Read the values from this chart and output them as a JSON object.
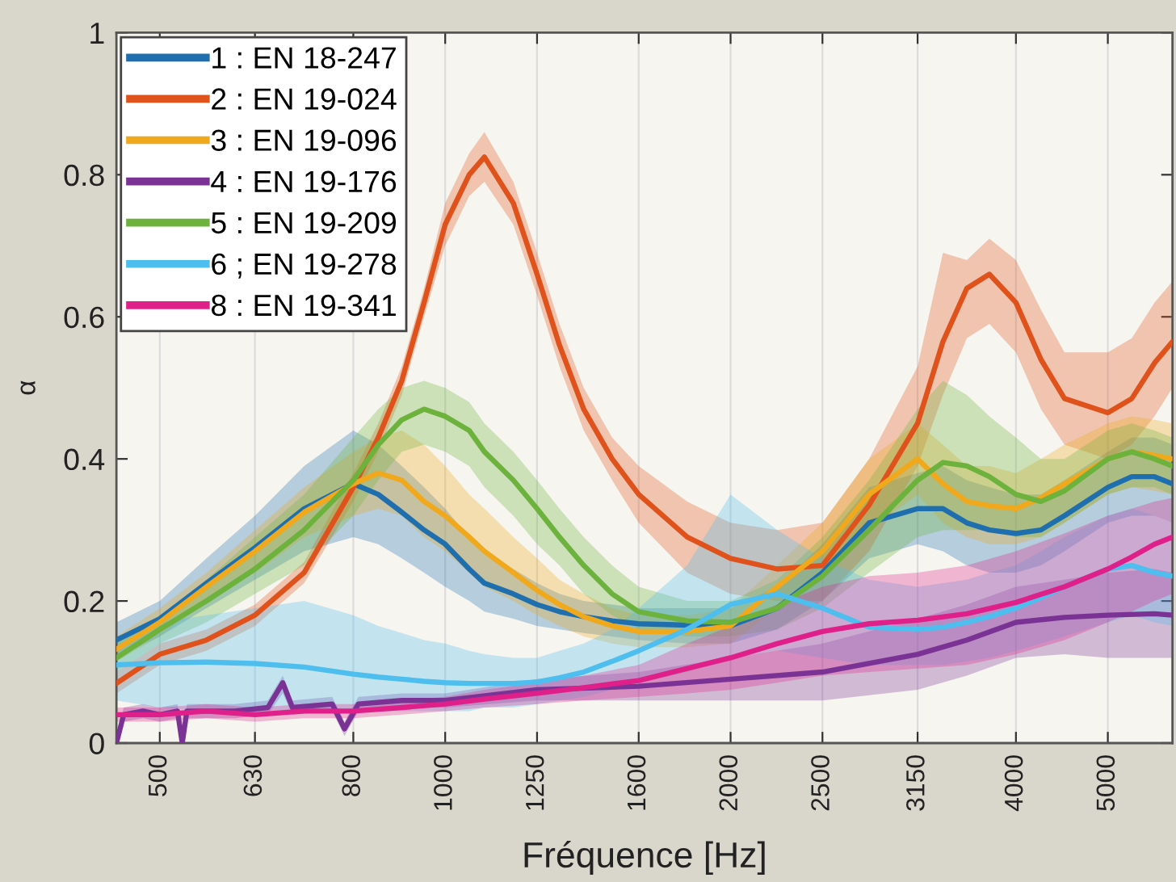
{
  "chart_data": {
    "type": "line",
    "xlabel": "Fréquence [Hz]",
    "ylabel": "α",
    "log": "x",
    "grid": "x",
    "legend": "top left",
    "xlim": [
      450,
      5850
    ],
    "xticks": [
      500,
      630,
      800,
      1000,
      1250,
      1600,
      2000,
      2500,
      3150,
      4000,
      5000
    ],
    "ylim": [
      0,
      1
    ],
    "yticks": [
      0,
      0.2,
      0.4,
      0.6,
      0.8,
      1
    ],
    "x": [
      450,
      500,
      560,
      630,
      710,
      800,
      850,
      900,
      950,
      1000,
      1060,
      1100,
      1180,
      1250,
      1320,
      1400,
      1500,
      1600,
      1800,
      2000,
      2240,
      2500,
      2800,
      3150,
      3350,
      3550,
      3750,
      4000,
      4250,
      4500,
      5000,
      5300,
      5600,
      5850
    ],
    "series": [
      {
        "name": "1 : EN 18-247",
        "color": "#1f6fae",
        "values": [
          0.145,
          0.175,
          0.225,
          0.275,
          0.33,
          0.365,
          0.35,
          0.325,
          0.3,
          0.28,
          0.245,
          0.225,
          0.21,
          0.195,
          0.185,
          0.178,
          0.172,
          0.168,
          0.166,
          0.165,
          0.19,
          0.24,
          0.31,
          0.33,
          0.33,
          0.31,
          0.3,
          0.295,
          0.3,
          0.32,
          0.36,
          0.375,
          0.375,
          0.365
        ],
        "lower": [
          0.12,
          0.15,
          0.19,
          0.23,
          0.27,
          0.29,
          0.28,
          0.26,
          0.24,
          0.22,
          0.2,
          0.185,
          0.175,
          0.165,
          0.16,
          0.155,
          0.15,
          0.145,
          0.14,
          0.14,
          0.16,
          0.2,
          0.26,
          0.28,
          0.27,
          0.25,
          0.24,
          0.24,
          0.25,
          0.27,
          0.31,
          0.32,
          0.32,
          0.31
        ],
        "upper": [
          0.17,
          0.2,
          0.26,
          0.32,
          0.39,
          0.44,
          0.42,
          0.39,
          0.36,
          0.33,
          0.29,
          0.27,
          0.245,
          0.225,
          0.21,
          0.2,
          0.195,
          0.19,
          0.19,
          0.19,
          0.22,
          0.28,
          0.36,
          0.38,
          0.39,
          0.37,
          0.36,
          0.35,
          0.35,
          0.37,
          0.41,
          0.43,
          0.43,
          0.42
        ]
      },
      {
        "name": "2 : EN 19-024",
        "color": "#e0521c",
        "values": [
          0.084,
          0.125,
          0.145,
          0.18,
          0.24,
          0.36,
          0.43,
          0.51,
          0.62,
          0.73,
          0.8,
          0.825,
          0.76,
          0.66,
          0.56,
          0.47,
          0.4,
          0.35,
          0.29,
          0.26,
          0.245,
          0.25,
          0.335,
          0.45,
          0.565,
          0.64,
          0.66,
          0.62,
          0.54,
          0.485,
          0.465,
          0.485,
          0.535,
          0.565
        ],
        "lower": [
          0.07,
          0.11,
          0.13,
          0.165,
          0.225,
          0.34,
          0.41,
          0.49,
          0.6,
          0.7,
          0.77,
          0.79,
          0.73,
          0.63,
          0.53,
          0.44,
          0.37,
          0.31,
          0.24,
          0.21,
          0.2,
          0.2,
          0.27,
          0.39,
          0.49,
          0.57,
          0.59,
          0.55,
          0.47,
          0.42,
          0.4,
          0.42,
          0.46,
          0.5
        ],
        "upper": [
          0.1,
          0.14,
          0.16,
          0.195,
          0.255,
          0.38,
          0.45,
          0.53,
          0.64,
          0.76,
          0.83,
          0.86,
          0.79,
          0.69,
          0.59,
          0.5,
          0.43,
          0.39,
          0.34,
          0.31,
          0.3,
          0.31,
          0.4,
          0.53,
          0.69,
          0.68,
          0.71,
          0.68,
          0.61,
          0.55,
          0.55,
          0.57,
          0.62,
          0.65
        ]
      },
      {
        "name": "3 : EN 19-096",
        "color": "#f0a81c",
        "values": [
          0.132,
          0.17,
          0.22,
          0.27,
          0.325,
          0.365,
          0.38,
          0.37,
          0.34,
          0.32,
          0.29,
          0.27,
          0.24,
          0.215,
          0.195,
          0.178,
          0.165,
          0.157,
          0.157,
          0.165,
          0.22,
          0.27,
          0.35,
          0.4,
          0.365,
          0.34,
          0.334,
          0.33,
          0.345,
          0.365,
          0.4,
          0.41,
          0.405,
          0.4
        ],
        "lower": [
          0.115,
          0.15,
          0.2,
          0.24,
          0.29,
          0.32,
          0.33,
          0.32,
          0.29,
          0.27,
          0.24,
          0.22,
          0.2,
          0.18,
          0.165,
          0.15,
          0.14,
          0.135,
          0.135,
          0.14,
          0.19,
          0.23,
          0.3,
          0.35,
          0.31,
          0.29,
          0.28,
          0.28,
          0.29,
          0.31,
          0.35,
          0.36,
          0.355,
          0.35
        ],
        "upper": [
          0.15,
          0.19,
          0.24,
          0.3,
          0.36,
          0.41,
          0.43,
          0.44,
          0.42,
          0.39,
          0.35,
          0.33,
          0.29,
          0.26,
          0.23,
          0.21,
          0.19,
          0.18,
          0.18,
          0.19,
          0.25,
          0.31,
          0.4,
          0.45,
          0.42,
          0.39,
          0.39,
          0.38,
          0.4,
          0.42,
          0.45,
          0.46,
          0.455,
          0.45
        ]
      },
      {
        "name": "4 : EN 19-176",
        "color": "#7a3394",
        "x": [
          450,
          458,
          480,
          500,
          522,
          528,
          534,
          600,
          650,
          674,
          690,
          760,
          783,
          810,
          900,
          1000,
          1250,
          1600,
          2000,
          2500,
          3150,
          3550,
          4000,
          4500,
          5000,
          5600,
          5850
        ],
        "values": [
          0.0,
          0.04,
          0.045,
          0.04,
          0.045,
          0.0,
          0.045,
          0.045,
          0.05,
          0.085,
          0.05,
          0.055,
          0.02,
          0.055,
          0.06,
          0.06,
          0.075,
          0.08,
          0.09,
          0.1,
          0.125,
          0.145,
          0.17,
          0.177,
          0.18,
          0.182,
          0.18
        ],
        "lower": [
          0.0,
          0.03,
          0.035,
          0.03,
          0.035,
          0.0,
          0.035,
          0.035,
          0.04,
          0.07,
          0.04,
          0.045,
          0.01,
          0.045,
          0.05,
          0.05,
          0.06,
          0.06,
          0.06,
          0.06,
          0.075,
          0.095,
          0.12,
          0.125,
          0.12,
          0.12,
          0.12
        ],
        "upper": [
          0.01,
          0.05,
          0.055,
          0.05,
          0.055,
          0.01,
          0.055,
          0.055,
          0.06,
          0.095,
          0.06,
          0.065,
          0.03,
          0.065,
          0.07,
          0.07,
          0.09,
          0.1,
          0.12,
          0.14,
          0.175,
          0.195,
          0.22,
          0.23,
          0.24,
          0.245,
          0.24
        ]
      },
      {
        "name": "5 : EN 19-209",
        "color": "#6cb23c",
        "values": [
          0.12,
          0.16,
          0.2,
          0.245,
          0.3,
          0.37,
          0.42,
          0.455,
          0.47,
          0.46,
          0.44,
          0.41,
          0.37,
          0.33,
          0.29,
          0.25,
          0.21,
          0.185,
          0.172,
          0.17,
          0.19,
          0.235,
          0.3,
          0.37,
          0.395,
          0.39,
          0.375,
          0.35,
          0.34,
          0.355,
          0.4,
          0.41,
          0.4,
          0.39
        ],
        "lower": [
          0.1,
          0.14,
          0.17,
          0.21,
          0.25,
          0.32,
          0.37,
          0.41,
          0.42,
          0.41,
          0.39,
          0.36,
          0.32,
          0.28,
          0.25,
          0.21,
          0.18,
          0.16,
          0.15,
          0.15,
          0.16,
          0.19,
          0.24,
          0.29,
          0.3,
          0.3,
          0.3,
          0.29,
          0.29,
          0.31,
          0.35,
          0.36,
          0.36,
          0.35
        ],
        "upper": [
          0.14,
          0.18,
          0.23,
          0.29,
          0.35,
          0.43,
          0.47,
          0.5,
          0.51,
          0.5,
          0.48,
          0.45,
          0.41,
          0.37,
          0.33,
          0.29,
          0.25,
          0.22,
          0.2,
          0.2,
          0.23,
          0.29,
          0.37,
          0.47,
          0.51,
          0.49,
          0.46,
          0.43,
          0.4,
          0.4,
          0.44,
          0.45,
          0.44,
          0.43
        ]
      },
      {
        "name": "6 ; EN 19-278",
        "color": "#4dbeee",
        "values": [
          0.11,
          0.113,
          0.114,
          0.112,
          0.107,
          0.097,
          0.093,
          0.09,
          0.087,
          0.085,
          0.084,
          0.084,
          0.084,
          0.086,
          0.092,
          0.1,
          0.115,
          0.13,
          0.16,
          0.195,
          0.21,
          0.19,
          0.163,
          0.16,
          0.163,
          0.17,
          0.178,
          0.19,
          0.205,
          0.22,
          0.245,
          0.25,
          0.24,
          0.235
        ],
        "lower": [
          0.06,
          0.05,
          0.045,
          0.045,
          0.045,
          0.045,
          0.045,
          0.045,
          0.045,
          0.045,
          0.045,
          0.05,
          0.05,
          0.055,
          0.06,
          0.065,
          0.075,
          0.085,
          0.1,
          0.12,
          0.13,
          0.12,
          0.11,
          0.11,
          0.11,
          0.115,
          0.12,
          0.13,
          0.14,
          0.15,
          0.17,
          0.18,
          0.17,
          0.165
        ],
        "upper": [
          0.15,
          0.17,
          0.18,
          0.19,
          0.2,
          0.18,
          0.165,
          0.155,
          0.145,
          0.14,
          0.13,
          0.125,
          0.12,
          0.12,
          0.13,
          0.14,
          0.16,
          0.19,
          0.25,
          0.35,
          0.3,
          0.26,
          0.23,
          0.22,
          0.225,
          0.23,
          0.24,
          0.25,
          0.27,
          0.29,
          0.32,
          0.33,
          0.32,
          0.31
        ]
      },
      {
        "name": "8 : EN 19-341",
        "color": "#e0208a",
        "x": [
          450,
          500,
          560,
          630,
          710,
          800,
          900,
          1000,
          1100,
          1250,
          1400,
          1600,
          1800,
          2000,
          2240,
          2500,
          2800,
          3150,
          3550,
          4000,
          4500,
          5000,
          5300,
          5600,
          5850
        ],
        "values": [
          0.04,
          0.04,
          0.045,
          0.04,
          0.045,
          0.045,
          0.05,
          0.055,
          0.062,
          0.07,
          0.078,
          0.088,
          0.105,
          0.12,
          0.14,
          0.157,
          0.168,
          0.173,
          0.182,
          0.198,
          0.22,
          0.245,
          0.262,
          0.28,
          0.29
        ],
        "lower": [
          0.03,
          0.03,
          0.035,
          0.03,
          0.035,
          0.035,
          0.04,
          0.045,
          0.05,
          0.055,
          0.06,
          0.065,
          0.07,
          0.075,
          0.085,
          0.095,
          0.1,
          0.105,
          0.11,
          0.125,
          0.145,
          0.17,
          0.185,
          0.2,
          0.21
        ],
        "upper": [
          0.05,
          0.05,
          0.055,
          0.05,
          0.055,
          0.055,
          0.06,
          0.065,
          0.075,
          0.085,
          0.095,
          0.11,
          0.14,
          0.165,
          0.195,
          0.22,
          0.235,
          0.24,
          0.25,
          0.27,
          0.295,
          0.32,
          0.33,
          0.34,
          0.345
        ]
      }
    ]
  }
}
